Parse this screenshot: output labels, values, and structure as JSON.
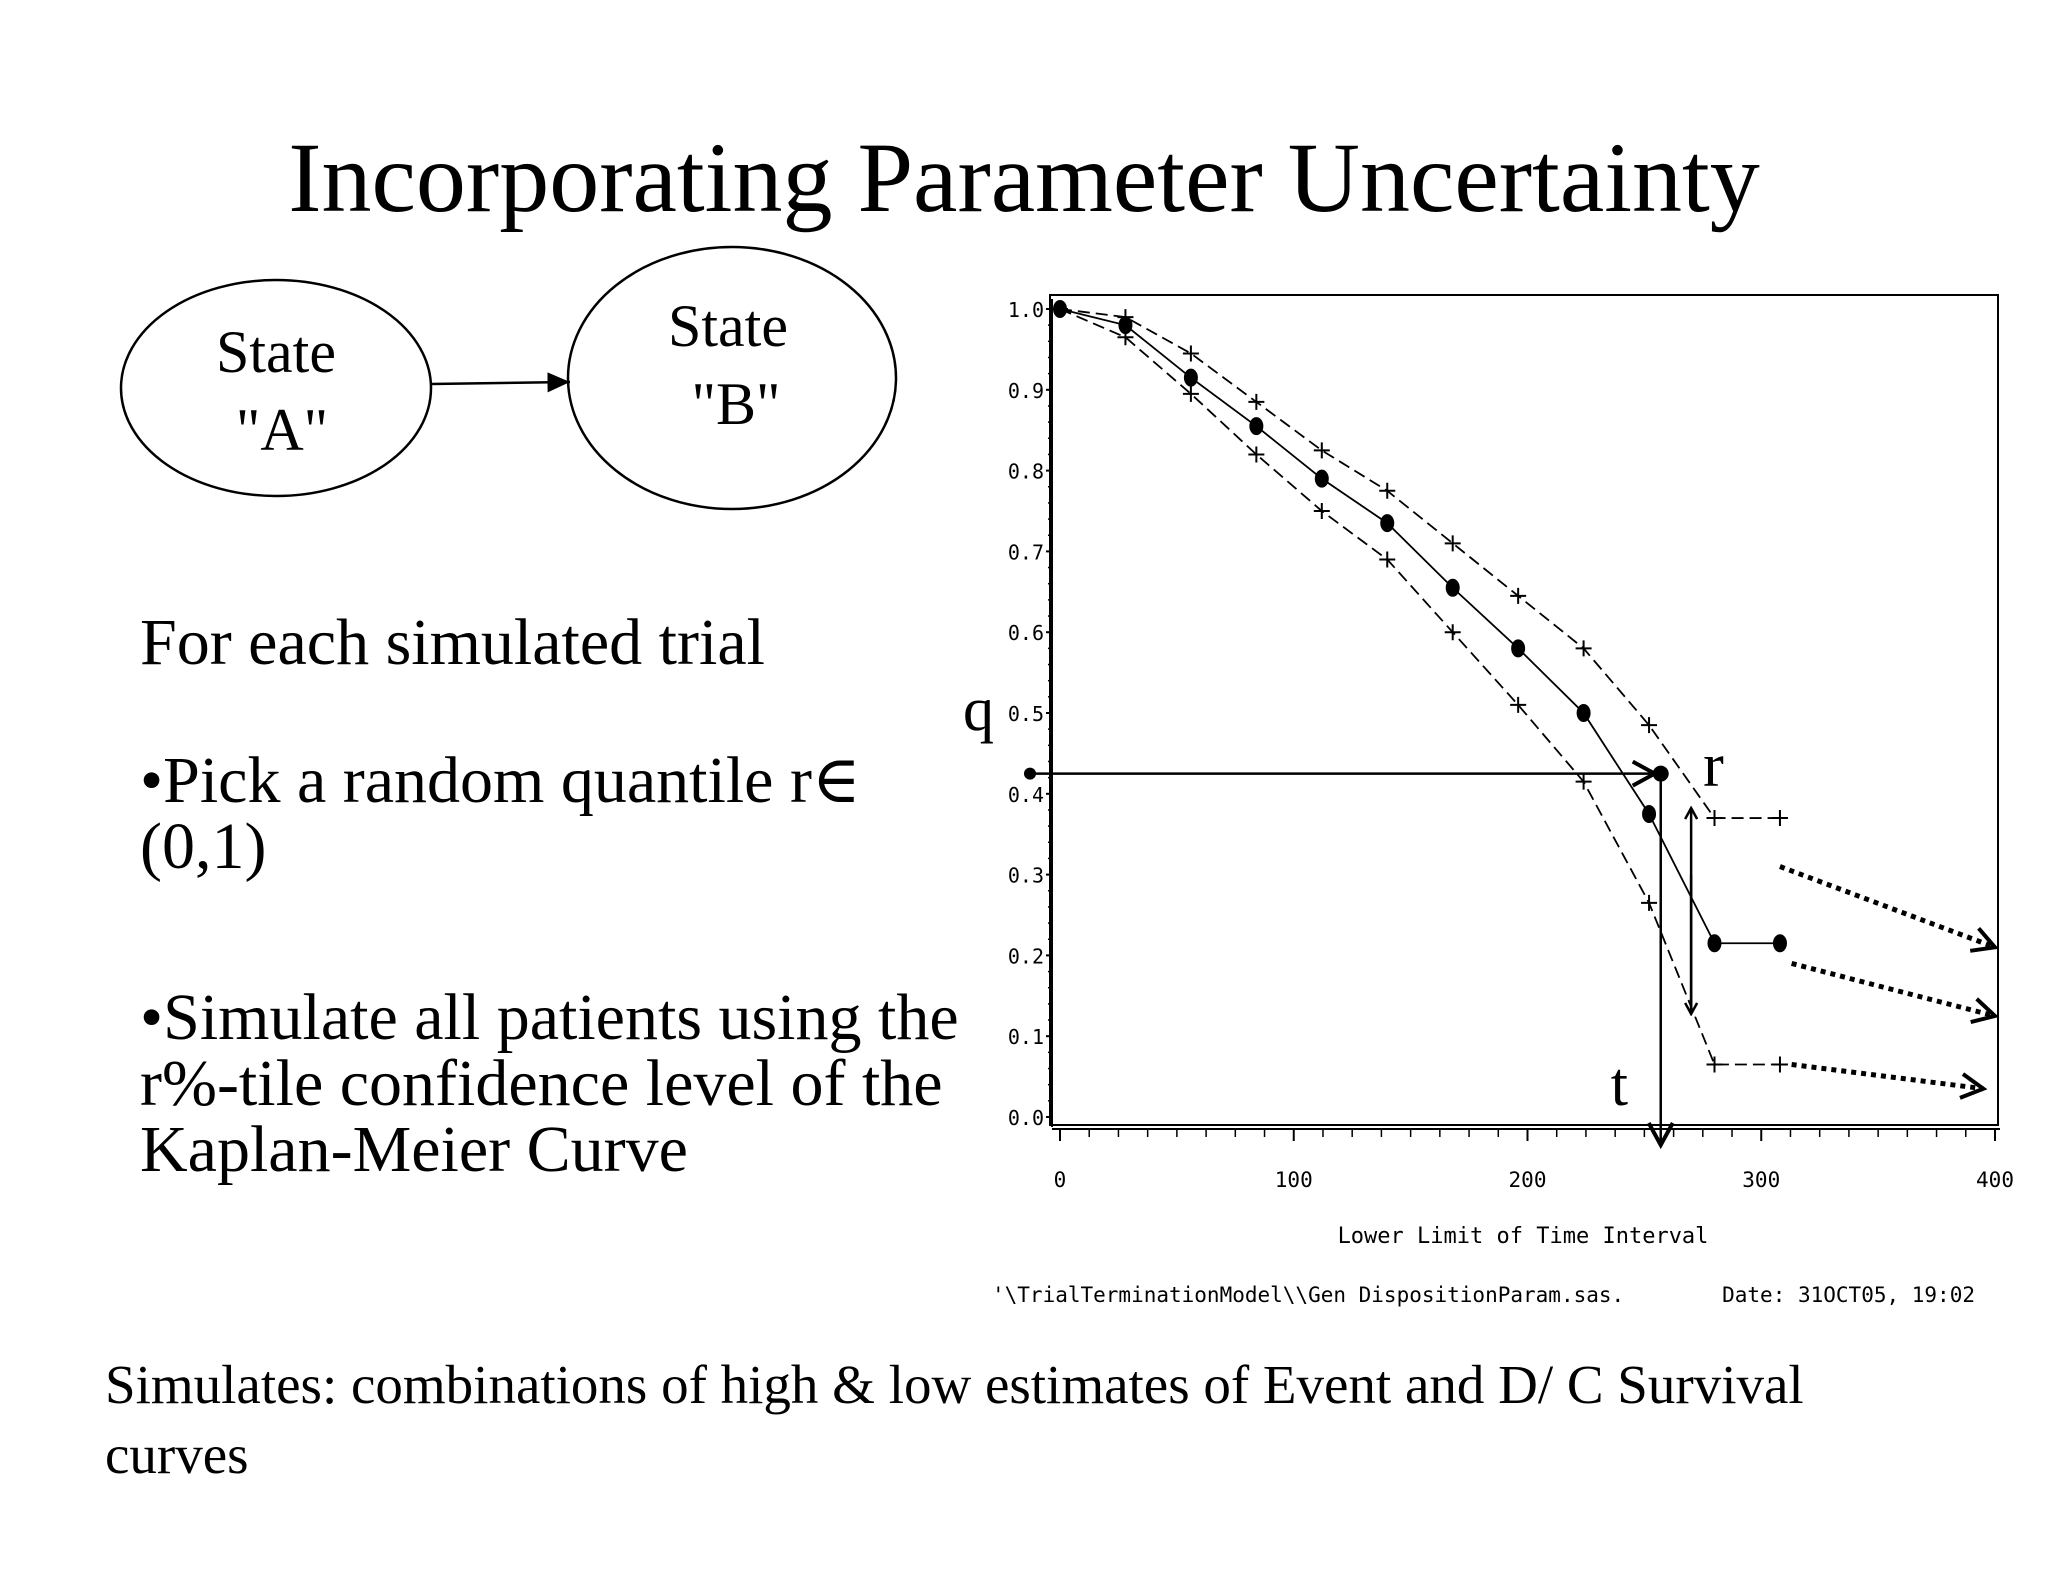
{
  "slide": {
    "title": "Incorporating Parameter Uncertainty",
    "intro": "For each simulated trial",
    "bullets": [
      "•Pick a random quantile r∈ (0,1)",
      "•Simulate all patients using the r%-tile confidence level of the Kaplan-Meier Curve"
    ],
    "footnote": "Simulates: combinations of high & low estimates of Event and D/ C Survival curves"
  },
  "diagram": {
    "nodes": [
      {
        "id": "state-a",
        "line1": "State",
        "line2": "\"A\""
      },
      {
        "id": "state-b",
        "line1": "State",
        "line2": "\"B\""
      }
    ],
    "edges": [
      {
        "from": "state-a",
        "to": "state-b"
      }
    ]
  },
  "chart_data": {
    "type": "line",
    "xlabel": "Lower Limit of Time Interval",
    "ylabel": "",
    "xlim": [
      0,
      400
    ],
    "ylim": [
      0.0,
      1.0
    ],
    "x_ticks": [
      "0",
      "100",
      "200",
      "300",
      "400"
    ],
    "y_ticks": [
      "0.0",
      "0.1",
      "0.2",
      "0.3",
      "0.4",
      "0.5",
      "0.6",
      "0.7",
      "0.8",
      "0.9",
      "1.0"
    ],
    "footer_left": "'\\TrialTerminationModel\\\\Gen DispositionParam.sas.",
    "footer_right": "Date: 31OCT05, 19:02",
    "series": [
      {
        "marker": "plus",
        "line": "dashed",
        "points": [
          [
            0,
            1.0
          ],
          [
            28,
            0.99
          ],
          [
            56,
            0.945
          ],
          [
            84,
            0.885
          ],
          [
            112,
            0.825
          ],
          [
            140,
            0.775
          ],
          [
            168,
            0.71
          ],
          [
            196,
            0.645
          ],
          [
            224,
            0.58
          ],
          [
            252,
            0.485
          ],
          [
            280,
            0.37
          ],
          [
            308,
            0.37
          ]
        ]
      },
      {
        "marker": "dot",
        "line": "solid",
        "points": [
          [
            0,
            1.0
          ],
          [
            28,
            0.98
          ],
          [
            56,
            0.915
          ],
          [
            84,
            0.855
          ],
          [
            112,
            0.79
          ],
          [
            140,
            0.735
          ],
          [
            168,
            0.655
          ],
          [
            196,
            0.58
          ],
          [
            224,
            0.5
          ],
          [
            252,
            0.375
          ],
          [
            280,
            0.215
          ],
          [
            308,
            0.215
          ]
        ]
      },
      {
        "marker": "plus",
        "line": "dashed",
        "points": [
          [
            0,
            1.0
          ],
          [
            28,
            0.965
          ],
          [
            56,
            0.895
          ],
          [
            84,
            0.82
          ],
          [
            112,
            0.75
          ],
          [
            140,
            0.69
          ],
          [
            168,
            0.6
          ],
          [
            196,
            0.51
          ],
          [
            224,
            0.415
          ],
          [
            252,
            0.265
          ],
          [
            280,
            0.065
          ],
          [
            308,
            0.065
          ]
        ]
      }
    ],
    "annotations": {
      "q_label": "q",
      "q_value": 0.425,
      "r_label": "r",
      "t_label": "t",
      "t_value": 257,
      "r_range": [
        0.37,
        0.13
      ],
      "dotted_arrows": [
        {
          "from": [
            308,
            0.31
          ],
          "to": [
            400,
            0.21
          ]
        },
        {
          "from": [
            313,
            0.19
          ],
          "to": [
            400,
            0.125
          ]
        },
        {
          "from": [
            313,
            0.065
          ],
          "to": [
            395,
            0.035
          ]
        }
      ]
    }
  }
}
